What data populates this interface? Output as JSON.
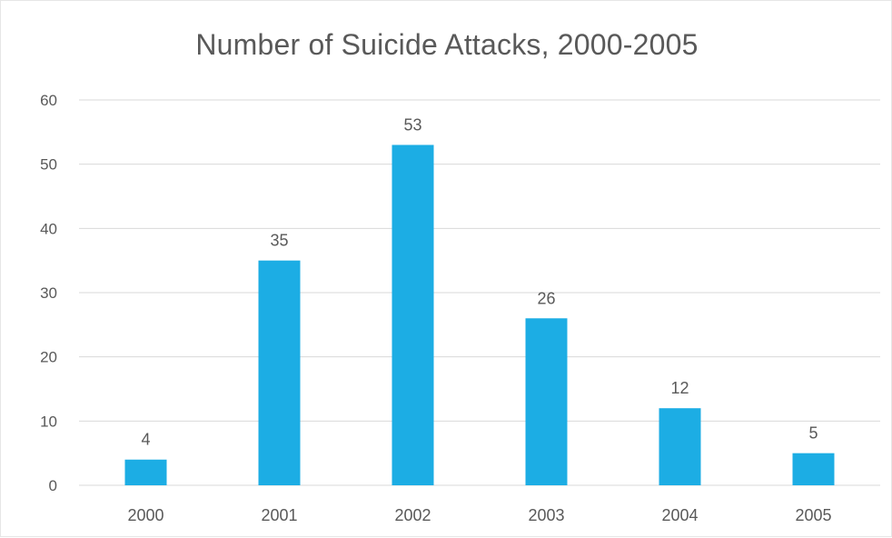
{
  "chart_data": {
    "type": "bar",
    "title": "Number of Suicide Attacks, 2000-2005",
    "xlabel": "",
    "ylabel": "",
    "categories": [
      "2000",
      "2001",
      "2002",
      "2003",
      "2004",
      "2005"
    ],
    "values": [
      4,
      35,
      53,
      26,
      12,
      5
    ],
    "data_labels": [
      "4",
      "35",
      "53",
      "26",
      "12",
      "5"
    ],
    "ylim": [
      0,
      60
    ],
    "yticks": [
      0,
      10,
      20,
      30,
      40,
      50,
      60
    ],
    "ytick_labels": [
      "0",
      "10",
      "20",
      "30",
      "40",
      "50",
      "60"
    ],
    "grid": true,
    "legend": "none",
    "colors": {
      "bar": "#1CADE4",
      "gridline": "#D9D9D9",
      "text": "#595959"
    }
  }
}
